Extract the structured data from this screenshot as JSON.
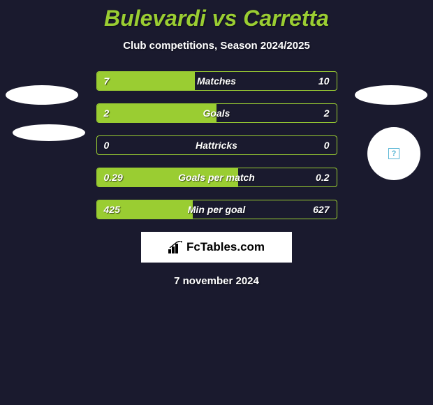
{
  "title": "Bulevardi vs Carretta",
  "subtitle": "Club competitions, Season 2024/2025",
  "colors": {
    "accent": "#9acd32",
    "bg": "#1a1a2e",
    "text": "#ffffff"
  },
  "rows": [
    {
      "label": "Matches",
      "left": "7",
      "right": "10",
      "leftPct": 41,
      "rightPct": 0
    },
    {
      "label": "Goals",
      "left": "2",
      "right": "2",
      "leftPct": 50,
      "rightPct": 0
    },
    {
      "label": "Hattricks",
      "left": "0",
      "right": "0",
      "leftPct": 0,
      "rightPct": 0
    },
    {
      "label": "Goals per match",
      "left": "0.29",
      "right": "0.2",
      "leftPct": 59,
      "rightPct": 0
    },
    {
      "label": "Min per goal",
      "left": "425",
      "right": "627",
      "leftPct": 40,
      "rightPct": 0
    }
  ],
  "brand": "FcTables.com",
  "date": "7 november 2024"
}
